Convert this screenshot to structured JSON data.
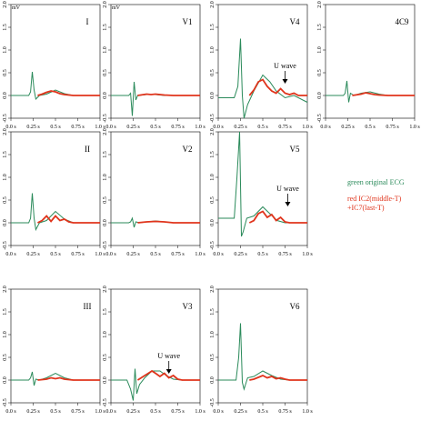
{
  "chart_data": {
    "type": "line",
    "unit_label": "mV",
    "x_tick_labels": [
      "0.0 s",
      "0.25 s",
      "0.5 s",
      "0.75 s",
      "1.0 s"
    ],
    "x_ticks": [
      0.0,
      0.25,
      0.5,
      0.75,
      1.0
    ],
    "ylim": [
      -0.5,
      2.0
    ],
    "y_tick_labels": [
      "-0.5",
      "0.0",
      "0.5",
      "1.0",
      "1.5",
      "2.0"
    ],
    "y_ticks": [
      -0.5,
      0.0,
      0.5,
      1.0,
      1.5,
      2.0
    ],
    "series_colors": {
      "green": "#2a8a5a",
      "red": "#e0341c"
    },
    "legend": {
      "green": "green original ECG",
      "red_line1": "red  IC2(middle-T)",
      "red_line2": "+IC7(last-T)"
    },
    "panels": [
      {
        "lead": "I",
        "row": 0,
        "col": 0,
        "show_unit": true,
        "green": {
          "x": [
            0,
            0.2,
            0.22,
            0.24,
            0.26,
            0.28,
            0.32,
            0.4,
            0.5,
            0.6,
            0.7,
            1.0
          ],
          "y": [
            0,
            0,
            0.08,
            0.52,
            0.12,
            -0.08,
            0,
            0.03,
            0.12,
            0.04,
            0.0,
            0
          ]
        },
        "red": {
          "x": [
            0.3,
            0.35,
            0.4,
            0.45,
            0.5,
            0.55,
            0.6,
            0.65,
            0.7,
            1.0
          ],
          "y": [
            0,
            0.03,
            0.07,
            0.1,
            0.08,
            0.04,
            0.02,
            0.01,
            0,
            0
          ]
        }
      },
      {
        "lead": "V1",
        "row": 0,
        "col": 1,
        "show_unit": true,
        "green": {
          "x": [
            0,
            0.2,
            0.22,
            0.24,
            0.26,
            0.28,
            0.3,
            0.4,
            0.5,
            0.6,
            0.7,
            1.0
          ],
          "y": [
            0,
            0,
            0.05,
            -0.45,
            0.3,
            -0.1,
            0,
            0.02,
            0.02,
            0.0,
            0,
            0
          ]
        },
        "red": {
          "x": [
            0.3,
            0.4,
            0.45,
            0.5,
            0.55,
            0.6,
            0.7,
            1.0
          ],
          "y": [
            0,
            0.03,
            0.02,
            0.03,
            0.02,
            0.01,
            0,
            0
          ]
        }
      },
      {
        "lead": "V4",
        "row": 0,
        "col": 2,
        "show_unit": false,
        "green": {
          "x": [
            0,
            0.18,
            0.22,
            0.25,
            0.27,
            0.29,
            0.33,
            0.4,
            0.5,
            0.58,
            0.65,
            0.75,
            0.85,
            1.0
          ],
          "y": [
            -0.05,
            -0.05,
            0.2,
            1.25,
            0.0,
            -0.5,
            -0.2,
            0.1,
            0.45,
            0.3,
            0.1,
            -0.05,
            0.0,
            -0.15
          ]
        },
        "red": {
          "x": [
            0.35,
            0.4,
            0.45,
            0.5,
            0.55,
            0.6,
            0.65,
            0.7,
            0.75,
            0.8,
            0.85,
            0.9,
            1.0
          ],
          "y": [
            0.0,
            0.12,
            0.3,
            0.35,
            0.2,
            0.1,
            0.05,
            0.15,
            0.05,
            0.02,
            0.05,
            0.0,
            0.0
          ]
        },
        "annotation": {
          "text": "U wave",
          "x": 0.75,
          "y": 0.2
        }
      },
      {
        "lead": "4C9",
        "row": 0,
        "col": 3,
        "show_unit": false,
        "green": {
          "x": [
            0,
            0.2,
            0.22,
            0.24,
            0.26,
            0.28,
            0.32,
            0.4,
            0.5,
            0.6,
            0.7,
            1.0
          ],
          "y": [
            0,
            0,
            0.05,
            0.32,
            -0.15,
            0.05,
            0,
            0.05,
            0.08,
            0.03,
            0,
            0
          ]
        },
        "red": {
          "x": [
            0.3,
            0.4,
            0.45,
            0.5,
            0.55,
            0.6,
            0.7,
            1.0
          ],
          "y": [
            0,
            0.03,
            0.06,
            0.04,
            0.02,
            0.01,
            0,
            0
          ]
        }
      },
      {
        "lead": "II",
        "row": 1,
        "col": 0,
        "show_unit": false,
        "green": {
          "x": [
            0,
            0.2,
            0.22,
            0.24,
            0.26,
            0.28,
            0.32,
            0.4,
            0.5,
            0.6,
            0.7,
            1.0
          ],
          "y": [
            0,
            0,
            0.1,
            0.65,
            0.1,
            -0.15,
            0,
            0.05,
            0.25,
            0.08,
            0.0,
            0
          ]
        },
        "red": {
          "x": [
            0.3,
            0.35,
            0.4,
            0.45,
            0.5,
            0.55,
            0.6,
            0.65,
            0.7,
            1.0
          ],
          "y": [
            0,
            0.05,
            0.15,
            0.03,
            0.15,
            0.05,
            0.08,
            0.02,
            0,
            0
          ]
        }
      },
      {
        "lead": "V2",
        "row": 1,
        "col": 1,
        "show_unit": false,
        "green": {
          "x": [
            0,
            0.2,
            0.22,
            0.24,
            0.26,
            0.28,
            0.32,
            0.4,
            0.5,
            0.6,
            0.7,
            1.0
          ],
          "y": [
            0,
            0,
            0.02,
            0.1,
            -0.1,
            0.02,
            0,
            0.02,
            0.04,
            0.02,
            0,
            0
          ]
        },
        "red": {
          "x": [
            0.3,
            0.4,
            0.5,
            0.6,
            0.7,
            1.0
          ],
          "y": [
            0,
            0.02,
            0.03,
            0.02,
            0,
            0
          ]
        }
      },
      {
        "lead": "V5",
        "row": 1,
        "col": 2,
        "show_unit": false,
        "green": {
          "x": [
            0,
            0.18,
            0.21,
            0.24,
            0.26,
            0.28,
            0.32,
            0.4,
            0.5,
            0.58,
            0.66,
            0.75,
            0.85,
            1.0
          ],
          "y": [
            0.1,
            0.1,
            1.0,
            2.0,
            -0.3,
            -0.2,
            0.1,
            0.15,
            0.35,
            0.2,
            0.05,
            0.0,
            0.0,
            0.0
          ]
        },
        "red": {
          "x": [
            0.35,
            0.4,
            0.45,
            0.5,
            0.55,
            0.6,
            0.65,
            0.7,
            0.75,
            0.8,
            1.0
          ],
          "y": [
            0.0,
            0.05,
            0.2,
            0.25,
            0.12,
            0.18,
            0.05,
            0.12,
            0.02,
            0.0,
            0.0
          ]
        },
        "annotation": {
          "text": "U wave",
          "x": 0.78,
          "y": 0.3
        }
      },
      {
        "lead": "III",
        "row": 2,
        "col": 0,
        "show_unit": false,
        "green": {
          "x": [
            0,
            0.2,
            0.22,
            0.24,
            0.26,
            0.28,
            0.32,
            0.4,
            0.5,
            0.6,
            0.7,
            1.0
          ],
          "y": [
            0,
            0,
            0.05,
            0.18,
            -0.12,
            0.02,
            0,
            0.05,
            0.15,
            0.05,
            0,
            0
          ]
        },
        "red": {
          "x": [
            0.3,
            0.4,
            0.45,
            0.5,
            0.55,
            0.6,
            0.7,
            1.0
          ],
          "y": [
            0,
            0.02,
            0.05,
            0.03,
            0.05,
            0.02,
            0,
            0
          ]
        }
      },
      {
        "lead": "V3",
        "row": 2,
        "col": 1,
        "show_unit": false,
        "green": {
          "x": [
            0,
            0.18,
            0.22,
            0.25,
            0.27,
            0.29,
            0.32,
            0.38,
            0.46,
            0.55,
            0.62,
            0.7,
            0.8,
            1.0
          ],
          "y": [
            0,
            0,
            -0.2,
            -0.45,
            0.25,
            -0.3,
            -0.1,
            0.05,
            0.2,
            0.2,
            0.1,
            0.02,
            0.0,
            0
          ]
        },
        "red": {
          "x": [
            0.3,
            0.34,
            0.38,
            0.42,
            0.46,
            0.5,
            0.55,
            0.6,
            0.65,
            0.7,
            0.75,
            0.8,
            1.0
          ],
          "y": [
            0,
            0.05,
            0.1,
            0.15,
            0.2,
            0.15,
            0.08,
            0.15,
            0.05,
            0.1,
            0.02,
            0.0,
            0
          ]
        },
        "annotation": {
          "text": "U wave",
          "x": 0.65,
          "y": 0.08
        }
      },
      {
        "lead": "V6",
        "row": 2,
        "col": 2,
        "show_unit": false,
        "green": {
          "x": [
            0,
            0.2,
            0.23,
            0.25,
            0.27,
            0.29,
            0.33,
            0.4,
            0.5,
            0.6,
            0.7,
            0.8,
            1.0
          ],
          "y": [
            0,
            0,
            0.5,
            1.25,
            -0.05,
            -0.2,
            0.05,
            0.08,
            0.2,
            0.1,
            0.02,
            0,
            0
          ]
        },
        "red": {
          "x": [
            0.35,
            0.4,
            0.45,
            0.5,
            0.55,
            0.6,
            0.65,
            0.7,
            0.75,
            0.8,
            1.0
          ],
          "y": [
            0,
            0.02,
            0.06,
            0.1,
            0.05,
            0.08,
            0.03,
            0.05,
            0.02,
            0,
            0
          ]
        }
      }
    ]
  }
}
